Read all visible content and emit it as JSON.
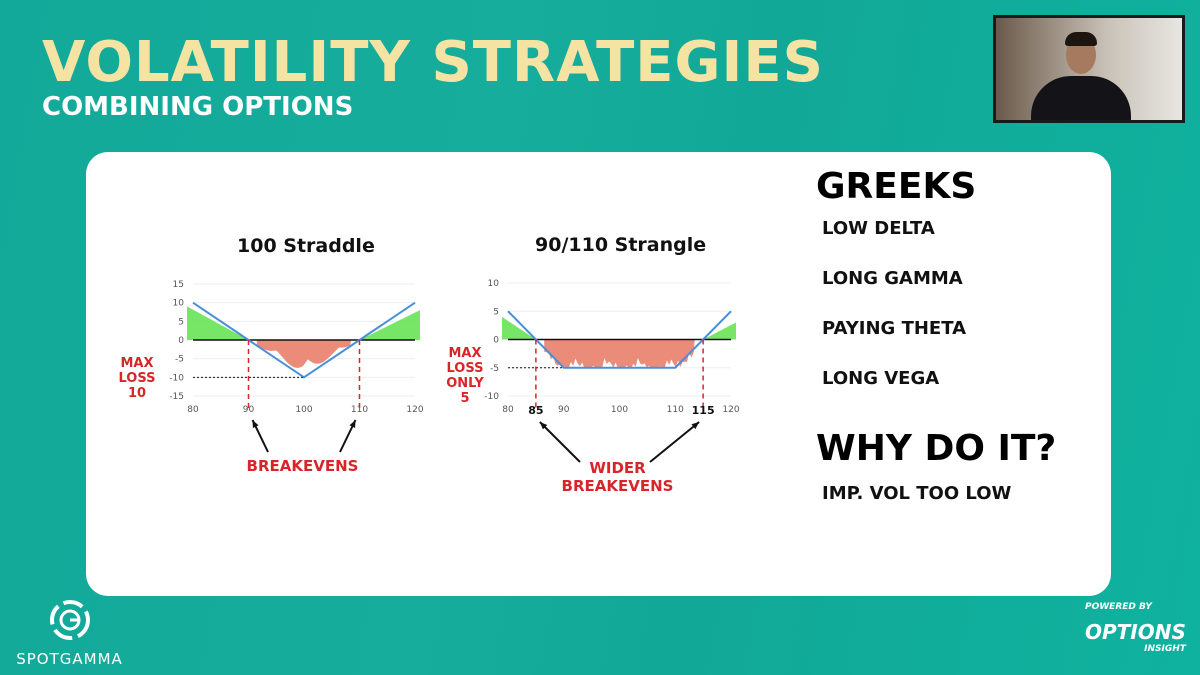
{
  "slide": {
    "title": "VOLATILITY STRATEGIES",
    "subtitle": "COMBINING OPTIONS"
  },
  "greeks": {
    "heading": "GREEKS",
    "items": [
      "LOW DELTA",
      "LONG GAMMA",
      "PAYING THETA",
      "LONG VEGA"
    ]
  },
  "why": {
    "heading": "WHY DO IT?",
    "items": [
      "IMP. VOL TOO LOW"
    ]
  },
  "branding": {
    "left": "SPOTGAMMA",
    "right_top": "POWERED BY",
    "right_main": "OPTIONS",
    "right_sub": "INSIGHT"
  },
  "colors": {
    "payoff": "#4a90d9",
    "profit": "#5fe04a",
    "loss": "#e8806a",
    "annotation": "#d6262a",
    "background": "#14ab9a",
    "title": "#f4e3a3"
  },
  "chart_data": [
    {
      "type": "line",
      "title": "100 Straddle",
      "x": [
        80,
        90,
        100,
        110,
        120
      ],
      "y": [
        10,
        0,
        -10,
        0,
        10
      ],
      "xticks": [
        80,
        90,
        100,
        110,
        120
      ],
      "yticks": [
        15,
        10,
        5,
        0,
        -5,
        -10,
        -15
      ],
      "xlim": [
        80,
        120
      ],
      "ylim": [
        -15,
        15
      ],
      "grid": true,
      "breakevens": [
        90,
        110
      ],
      "max_loss": -10,
      "annotations": {
        "max_loss": [
          "MAX",
          "LOSS",
          "10"
        ],
        "breakevens": [
          "BREAKEVENS"
        ]
      }
    },
    {
      "type": "line",
      "title": "90/110 Strangle",
      "x": [
        80,
        85,
        90,
        110,
        115,
        120
      ],
      "y": [
        5,
        0,
        -5,
        -5,
        0,
        5
      ],
      "xticks": [
        80,
        90,
        100,
        110,
        120
      ],
      "yticks": [
        10,
        5,
        0,
        -5,
        -10
      ],
      "xlim": [
        80,
        120
      ],
      "ylim": [
        -10,
        10
      ],
      "grid": true,
      "breakevens": [
        85,
        115
      ],
      "breakeven_labels": [
        "85",
        "115"
      ],
      "max_loss": -5,
      "annotations": {
        "max_loss": [
          "MAX",
          "LOSS",
          "ONLY 5"
        ],
        "breakevens": [
          "WIDER",
          "BREAKEVENS"
        ]
      }
    }
  ]
}
